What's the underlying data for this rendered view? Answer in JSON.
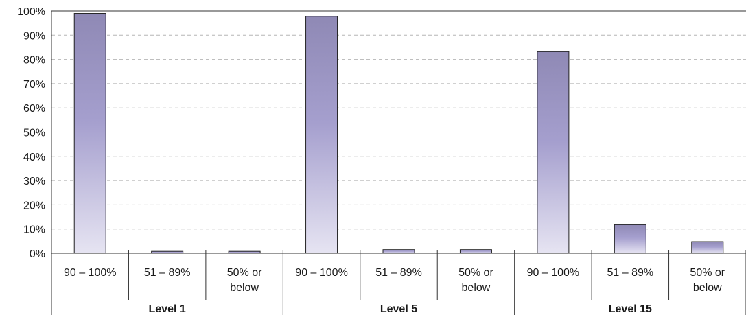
{
  "chart_data": {
    "type": "bar",
    "groups": [
      "Level 1",
      "Level 5",
      "Level 15"
    ],
    "categories": [
      "90 – 100%",
      "51 – 89%",
      "50% or below"
    ],
    "category_lines": [
      [
        "90 – 100%"
      ],
      [
        "51 – 89%"
      ],
      [
        "50% or",
        "below"
      ]
    ],
    "values": [
      [
        99,
        0.8,
        0.8
      ],
      [
        97.8,
        1.5,
        1.5
      ],
      [
        83.2,
        11.8,
        4.8
      ]
    ],
    "yticks": [
      "0%",
      "10%",
      "20%",
      "30%",
      "40%",
      "50%",
      "60%",
      "70%",
      "80%",
      "90%",
      "100%"
    ],
    "ylim": [
      0,
      100
    ],
    "grid": true,
    "bar_color_top": "#8f89b5",
    "bar_color_mid": "#a59fce",
    "bar_color_bottom": "#e6e4f2"
  }
}
